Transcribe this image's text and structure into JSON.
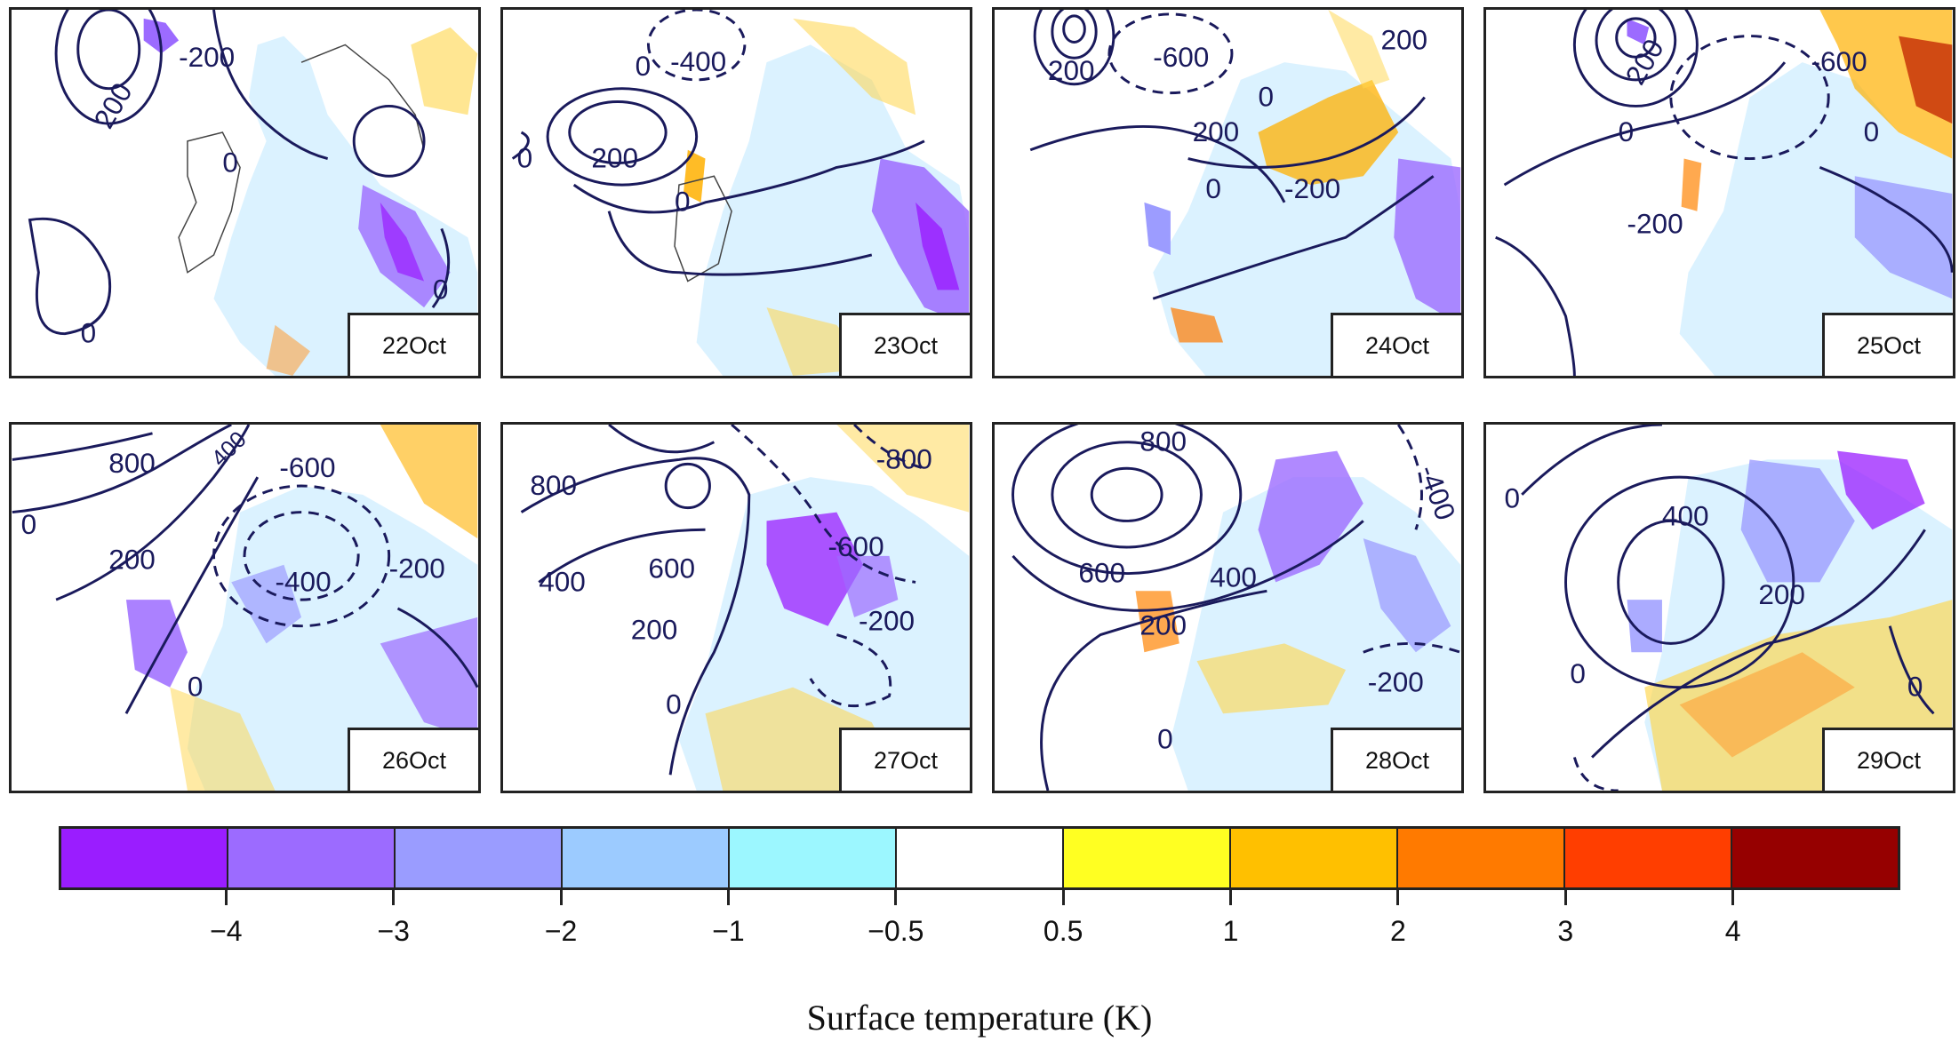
{
  "panels": [
    {
      "date": "22Oct",
      "contour_labels": [
        "-200",
        "200",
        "0",
        "0",
        "0"
      ]
    },
    {
      "date": "23Oct",
      "contour_labels": [
        "-400",
        "0",
        "200",
        "0",
        "0"
      ]
    },
    {
      "date": "24Oct",
      "contour_labels": [
        "-600",
        "200",
        "200",
        "0",
        "-200",
        "0",
        "200"
      ]
    },
    {
      "date": "25Oct",
      "contour_labels": [
        "-600",
        "200",
        "0",
        "-200",
        "0"
      ]
    },
    {
      "date": "26Oct",
      "contour_labels": [
        "800",
        "-600",
        "0",
        "200",
        "-400",
        "-200",
        "400",
        "0"
      ]
    },
    {
      "date": "27Oct",
      "contour_labels": [
        "800",
        "-800",
        "400",
        "600",
        "-600",
        "200",
        "-200",
        "0"
      ]
    },
    {
      "date": "28Oct",
      "contour_labels": [
        "800",
        "-400",
        "600",
        "400",
        "200",
        "-200",
        "0"
      ]
    },
    {
      "date": "29Oct",
      "contour_labels": [
        "0",
        "400",
        "200",
        "0",
        "0"
      ]
    }
  ],
  "colorbar": {
    "title": "Surface temperature (K)",
    "tick_labels": [
      "−4",
      "−3",
      "−2",
      "−1",
      "−0.5",
      "0.5",
      "1",
      "2",
      "3",
      "4"
    ],
    "colors": [
      "#9a1dff",
      "#9c6bff",
      "#9a9cff",
      "#9ccbff",
      "#9cf7ff",
      "#ffffff",
      "#ffff22",
      "#ffc000",
      "#ff7a00",
      "#ff3e00",
      "#960000"
    ]
  }
}
